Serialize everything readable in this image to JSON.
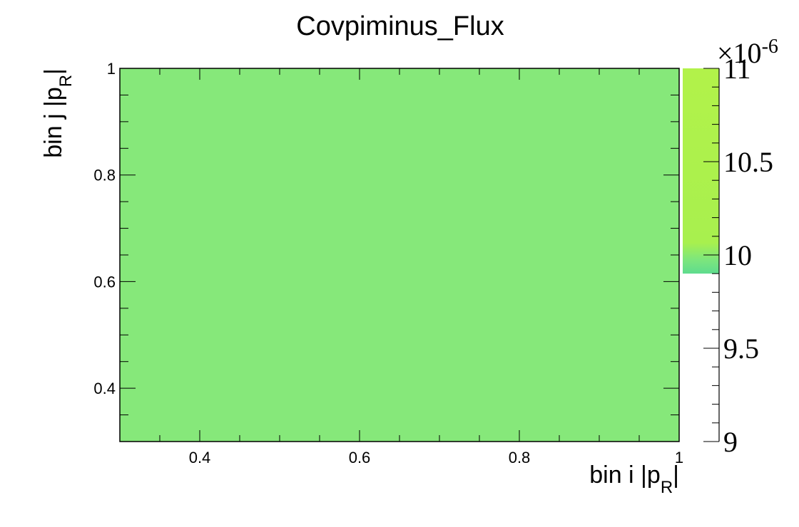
{
  "chart_data": {
    "type": "heatmap",
    "title": "Covpiminus_Flux",
    "xlabel": "bin i |p⃗_R|",
    "ylabel": "bin j |p⃗_R|",
    "xlabel_parts": {
      "prefix": "bin i |",
      "p": "p",
      "sub": "R",
      "suffix": "|"
    },
    "ylabel_parts": {
      "prefix": "bin j |",
      "p": "p",
      "sub": "R",
      "suffix": "|"
    },
    "xlim": [
      0.3,
      1.0
    ],
    "ylim": [
      0.3,
      1.0
    ],
    "x_ticks": [
      0.4,
      0.6,
      0.8,
      1
    ],
    "x_tick_labels": [
      "0.4",
      "0.6",
      "0.8",
      "1"
    ],
    "y_ticks": [
      0.4,
      0.6,
      0.8,
      1
    ],
    "y_tick_labels": [
      "0.4",
      "0.6",
      "0.8",
      "1"
    ],
    "cells": [
      {
        "x_range": [
          0.3,
          1.0
        ],
        "y_range": [
          0.3,
          1.0
        ],
        "value": 1e-05
      }
    ],
    "cell_color": "#86e87a",
    "colorbar": {
      "range": [
        9e-06,
        1.1e-05
      ],
      "exponent_label": "×10",
      "exponent": "-6",
      "ticks": [
        9,
        9.5,
        10,
        10.5,
        11
      ],
      "tick_labels": [
        "9",
        "9.5",
        "10",
        "10.5",
        "11"
      ],
      "filled_range": [
        9.9,
        11
      ],
      "colors": {
        "top": "#b2f24a",
        "mid": "#a8f04e",
        "low": "#7ee67c",
        "bottom": "#5edc8e"
      }
    },
    "grid": false,
    "legend": "none"
  }
}
